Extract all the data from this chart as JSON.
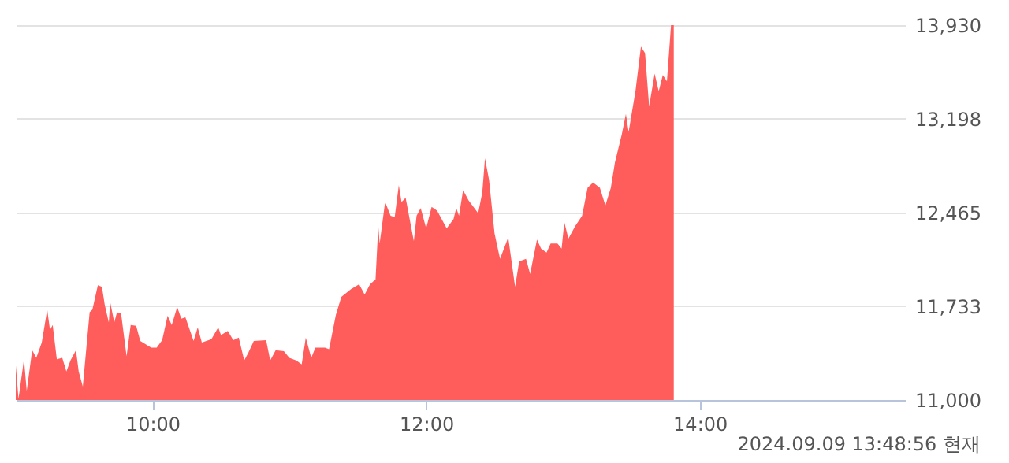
{
  "chart_data": {
    "type": "area",
    "x": [
      9.0,
      9.02,
      9.06,
      9.08,
      9.12,
      9.15,
      9.19,
      9.23,
      9.25,
      9.27,
      9.3,
      9.34,
      9.37,
      9.4,
      9.44,
      9.46,
      9.49,
      9.54,
      9.56,
      9.6,
      9.63,
      9.65,
      9.68,
      9.69,
      9.72,
      9.74,
      9.77,
      9.81,
      9.84,
      9.88,
      9.91,
      9.99,
      10.03,
      10.07,
      10.11,
      10.14,
      10.18,
      10.21,
      10.24,
      10.3,
      10.33,
      10.36,
      10.43,
      10.48,
      10.5,
      10.55,
      10.59,
      10.63,
      10.67,
      10.7,
      10.74,
      10.83,
      10.86,
      10.9,
      10.96,
      11.0,
      11.05,
      11.09,
      11.12,
      11.16,
      11.19,
      11.26,
      11.29,
      11.34,
      11.38,
      11.45,
      11.51,
      11.55,
      11.59,
      11.63,
      11.65,
      11.66,
      11.7,
      11.74,
      11.77,
      11.8,
      11.82,
      11.85,
      11.91,
      11.93,
      11.96,
      12.0,
      12.04,
      12.08,
      12.15,
      12.2,
      12.22,
      12.24,
      12.27,
      12.31,
      12.38,
      12.41,
      12.43,
      12.46,
      12.5,
      12.54,
      12.6,
      12.65,
      12.68,
      12.73,
      12.76,
      12.81,
      12.84,
      12.88,
      12.91,
      12.96,
      12.99,
      13.01,
      13.04,
      13.09,
      13.14,
      13.18,
      13.22,
      13.27,
      13.31,
      13.35,
      13.38,
      13.43,
      13.46,
      13.48,
      13.53,
      13.57,
      13.6,
      13.63,
      13.67,
      13.7,
      13.73,
      13.76,
      13.79,
      13.81
    ],
    "series": [
      {
        "color": "#ff5c5c",
        "values": [
          11270,
          11010,
          11318,
          11071,
          11389,
          11330,
          11449,
          11706,
          11548,
          11587,
          11318,
          11330,
          11223,
          11310,
          11389,
          11223,
          11104,
          11687,
          11706,
          11897,
          11885,
          11746,
          11607,
          11766,
          11607,
          11687,
          11675,
          11342,
          11587,
          11580,
          11461,
          11409,
          11409,
          11468,
          11659,
          11587,
          11727,
          11635,
          11647,
          11461,
          11568,
          11449,
          11476,
          11568,
          11508,
          11540,
          11468,
          11488,
          11310,
          11369,
          11461,
          11468,
          11310,
          11389,
          11381,
          11330,
          11310,
          11278,
          11488,
          11330,
          11409,
          11409,
          11397,
          11667,
          11806,
          11866,
          11905,
          11825,
          11905,
          11944,
          12361,
          12223,
          12548,
          12441,
          12429,
          12679,
          12548,
          12580,
          12242,
          12441,
          12501,
          12342,
          12509,
          12480,
          12342,
          12414,
          12501,
          12441,
          12640,
          12560,
          12461,
          12620,
          12890,
          12719,
          12302,
          12104,
          12271,
          11885,
          12084,
          12104,
          11985,
          12254,
          12183,
          12152,
          12223,
          12223,
          12183,
          12390,
          12262,
          12361,
          12441,
          12659,
          12700,
          12659,
          12521,
          12659,
          12858,
          13076,
          13236,
          13096,
          13414,
          13763,
          13712,
          13295,
          13552,
          13414,
          13540,
          13492,
          13930,
          13930
        ]
      }
    ],
    "xlim": [
      9,
      15.5
    ],
    "xticks": [
      {
        "value": 10,
        "label": "10:00"
      },
      {
        "value": 12,
        "label": "12:00"
      },
      {
        "value": 14,
        "label": "14:00"
      }
    ],
    "ylim": [
      11000,
      13930
    ],
    "yticks": [
      {
        "value": 11000,
        "label": "11,000"
      },
      {
        "value": 11733,
        "label": "11,733"
      },
      {
        "value": 12465,
        "label": "12,465"
      },
      {
        "value": 13198,
        "label": "13,198"
      },
      {
        "value": 13930,
        "label": "13,930"
      }
    ],
    "grid": "y",
    "annotations": [
      "2024.09.09 13:48:56 현재"
    ]
  }
}
